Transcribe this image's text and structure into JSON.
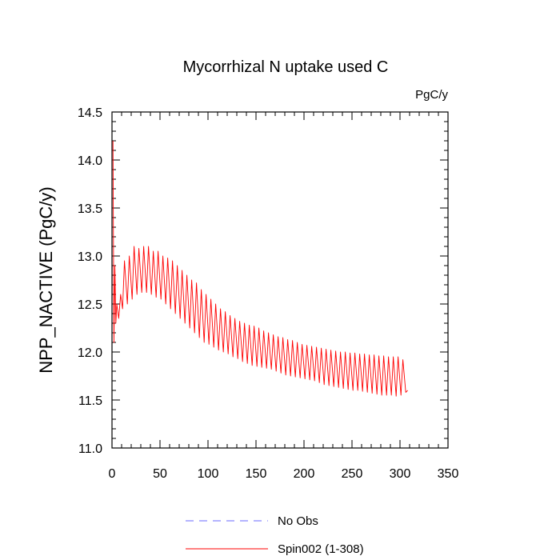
{
  "chart_data": {
    "type": "line",
    "title": "Mycorrhizal N uptake used C",
    "units": "PgC/y",
    "xlabel": "",
    "ylabel": "NPP_NACTIVE  (PgC/y)",
    "xlim": [
      0,
      350
    ],
    "ylim": [
      11.0,
      14.5
    ],
    "x_ticks": [
      0,
      50,
      100,
      150,
      200,
      250,
      300,
      350
    ],
    "x_tick_labels": [
      "0",
      "50",
      "100",
      "150",
      "200",
      "250",
      "300",
      "350"
    ],
    "y_ticks": [
      11.0,
      11.5,
      12.0,
      12.5,
      13.0,
      13.5,
      14.0,
      14.5
    ],
    "y_tick_labels": [
      "11.0",
      "11.5",
      "12.0",
      "12.5",
      "13.0",
      "13.5",
      "14.0",
      "14.5"
    ],
    "grid": false,
    "legend_position": "bottom-center",
    "series": [
      {
        "name": "No Obs",
        "color": "#6a6aff",
        "dash": "dashed",
        "x": [],
        "values": []
      },
      {
        "name": "Spin002 (1-308)",
        "color": "#ff0000",
        "dash": "solid",
        "note": "sawtooth oscillation with ~5-year period; values listed as (x, peak) and (x, trough) alternating",
        "x": [
          1,
          2,
          3,
          4,
          5,
          7,
          9,
          11,
          13,
          16,
          18,
          21,
          23,
          26,
          28,
          31,
          33,
          36,
          38,
          41,
          43,
          46,
          48,
          51,
          53,
          56,
          58,
          61,
          63,
          66,
          68,
          71,
          73,
          76,
          78,
          81,
          83,
          86,
          88,
          91,
          93,
          96,
          98,
          101,
          103,
          106,
          108,
          111,
          113,
          116,
          118,
          121,
          123,
          126,
          128,
          131,
          133,
          136,
          138,
          141,
          143,
          146,
          148,
          151,
          153,
          156,
          158,
          161,
          163,
          166,
          168,
          171,
          173,
          176,
          178,
          181,
          183,
          186,
          188,
          191,
          193,
          196,
          198,
          201,
          203,
          206,
          208,
          211,
          213,
          216,
          218,
          221,
          223,
          226,
          228,
          231,
          233,
          236,
          238,
          241,
          243,
          246,
          248,
          251,
          253,
          256,
          258,
          261,
          263,
          266,
          268,
          271,
          273,
          276,
          278,
          281,
          283,
          286,
          288,
          291,
          293,
          296,
          298,
          301,
          303,
          306,
          308
        ],
        "values": [
          14.2,
          12.1,
          12.9,
          12.3,
          12.5,
          12.35,
          12.6,
          12.45,
          12.95,
          12.5,
          13.0,
          12.55,
          13.1,
          12.6,
          13.08,
          12.62,
          13.1,
          12.62,
          13.1,
          12.6,
          13.05,
          12.57,
          13.05,
          12.55,
          13.0,
          12.5,
          12.98,
          12.45,
          12.95,
          12.4,
          12.9,
          12.35,
          12.85,
          12.3,
          12.8,
          12.25,
          12.75,
          12.2,
          12.72,
          12.15,
          12.65,
          12.1,
          12.6,
          12.08,
          12.55,
          12.05,
          12.5,
          12.02,
          12.45,
          12.0,
          12.42,
          11.98,
          12.38,
          11.95,
          12.35,
          11.93,
          12.32,
          11.9,
          12.3,
          11.88,
          12.28,
          11.86,
          12.27,
          11.85,
          12.25,
          11.84,
          12.22,
          11.83,
          12.2,
          11.82,
          12.18,
          11.8,
          12.16,
          11.78,
          12.15,
          11.76,
          12.13,
          11.75,
          12.12,
          11.74,
          12.1,
          11.73,
          12.08,
          11.72,
          12.07,
          11.71,
          12.06,
          11.7,
          12.05,
          11.68,
          12.04,
          11.66,
          12.03,
          11.65,
          12.02,
          11.64,
          12.01,
          11.63,
          12.0,
          11.62,
          12.0,
          11.61,
          11.99,
          11.6,
          11.99,
          11.6,
          11.98,
          11.59,
          11.98,
          11.58,
          11.97,
          11.57,
          11.97,
          11.56,
          11.96,
          11.55,
          11.96,
          11.55,
          11.95,
          11.55,
          11.95,
          11.54,
          11.95,
          11.55,
          11.92,
          11.58,
          11.6
        ]
      }
    ]
  }
}
